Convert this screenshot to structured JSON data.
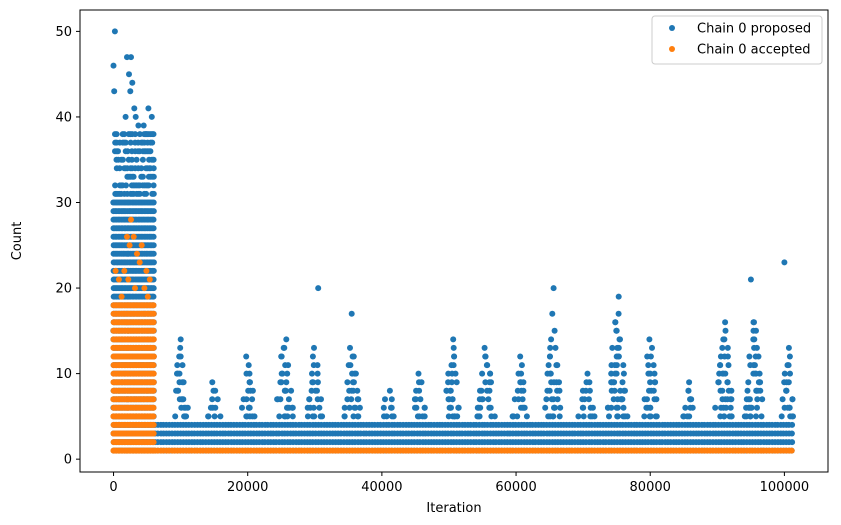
{
  "chart_data": {
    "type": "scatter",
    "title": "",
    "xlabel": "Iteration",
    "ylabel": "Count",
    "xlim": [
      -5000,
      106500
    ],
    "ylim": [
      -1.5,
      52.5
    ],
    "xticks": [
      0,
      20000,
      40000,
      60000,
      80000,
      100000
    ],
    "xtick_labels": [
      "0",
      "20000",
      "40000",
      "60000",
      "80000",
      "100000"
    ],
    "yticks": [
      0,
      10,
      20,
      30,
      40,
      50
    ],
    "ytick_labels": [
      "0",
      "10",
      "20",
      "30",
      "40",
      "50"
    ],
    "grid": false,
    "legend_position": "top-right",
    "series": [
      {
        "name": "Chain 0 proposed",
        "color": "#1f77b4",
        "bands": [
          {
            "x": [
              0,
              6200
            ],
            "y_min": 1,
            "y_max": 38
          },
          {
            "x": [
              6200,
              101500
            ],
            "y_min": 1,
            "y_max": 4
          }
        ],
        "clusters": [
          {
            "center": 10000,
            "width": 2600,
            "peak": 14
          },
          {
            "center": 15000,
            "width": 2200,
            "peak": 9
          },
          {
            "center": 20000,
            "width": 2600,
            "peak": 12
          },
          {
            "center": 25500,
            "width": 3000,
            "peak": 14
          },
          {
            "center": 30000,
            "width": 2600,
            "peak": 13
          },
          {
            "center": 35500,
            "width": 3000,
            "peak": 13
          },
          {
            "center": 41000,
            "width": 2400,
            "peak": 8
          },
          {
            "center": 45500,
            "width": 2600,
            "peak": 10
          },
          {
            "center": 50500,
            "width": 2800,
            "peak": 14
          },
          {
            "center": 55500,
            "width": 3000,
            "peak": 13
          },
          {
            "center": 60500,
            "width": 2600,
            "peak": 12
          },
          {
            "center": 65500,
            "width": 3000,
            "peak": 15
          },
          {
            "center": 70500,
            "width": 2800,
            "peak": 10
          },
          {
            "center": 75000,
            "width": 3600,
            "peak": 17
          },
          {
            "center": 80000,
            "width": 2600,
            "peak": 14
          },
          {
            "center": 85500,
            "width": 2400,
            "peak": 9
          },
          {
            "center": 91000,
            "width": 3200,
            "peak": 16
          },
          {
            "center": 95500,
            "width": 3400,
            "peak": 16
          },
          {
            "center": 100500,
            "width": 2400,
            "peak": 13
          }
        ],
        "points": [
          {
            "x": 200,
            "y": 50
          },
          {
            "x": 0,
            "y": 46
          },
          {
            "x": 100,
            "y": 43
          },
          {
            "x": 2000,
            "y": 47
          },
          {
            "x": 2600,
            "y": 47
          },
          {
            "x": 2300,
            "y": 45
          },
          {
            "x": 2800,
            "y": 44
          },
          {
            "x": 2500,
            "y": 43
          },
          {
            "x": 3100,
            "y": 41
          },
          {
            "x": 1800,
            "y": 40
          },
          {
            "x": 3300,
            "y": 40
          },
          {
            "x": 5200,
            "y": 41
          },
          {
            "x": 5700,
            "y": 40
          },
          {
            "x": 3700,
            "y": 39
          },
          {
            "x": 4500,
            "y": 39
          },
          {
            "x": 4800,
            "y": 38
          },
          {
            "x": 30500,
            "y": 20
          },
          {
            "x": 35500,
            "y": 17
          },
          {
            "x": 65600,
            "y": 20
          },
          {
            "x": 65400,
            "y": 17
          },
          {
            "x": 75300,
            "y": 19
          },
          {
            "x": 95000,
            "y": 21
          },
          {
            "x": 100000,
            "y": 23
          },
          {
            "x": 95400,
            "y": 16
          }
        ]
      },
      {
        "name": "Chain 0 accepted",
        "color": "#ff7f0e",
        "bands": [
          {
            "x": [
              0,
              6200
            ],
            "y_min": 1,
            "y_max": 18
          },
          {
            "x": [
              6200,
              101500
            ],
            "y_min": 1,
            "y_max": 1
          }
        ],
        "clusters": [],
        "points": [
          {
            "x": 2600,
            "y": 28
          },
          {
            "x": 2000,
            "y": 26
          },
          {
            "x": 3000,
            "y": 26
          },
          {
            "x": 2400,
            "y": 25
          },
          {
            "x": 4200,
            "y": 25
          },
          {
            "x": 3500,
            "y": 24
          },
          {
            "x": 300,
            "y": 22
          },
          {
            "x": 1600,
            "y": 22
          },
          {
            "x": 3900,
            "y": 23
          },
          {
            "x": 4900,
            "y": 22
          },
          {
            "x": 800,
            "y": 21
          },
          {
            "x": 2200,
            "y": 21
          },
          {
            "x": 3200,
            "y": 20
          },
          {
            "x": 4600,
            "y": 20
          },
          {
            "x": 5400,
            "y": 21
          },
          {
            "x": 1200,
            "y": 19
          },
          {
            "x": 5100,
            "y": 19
          }
        ]
      }
    ]
  }
}
